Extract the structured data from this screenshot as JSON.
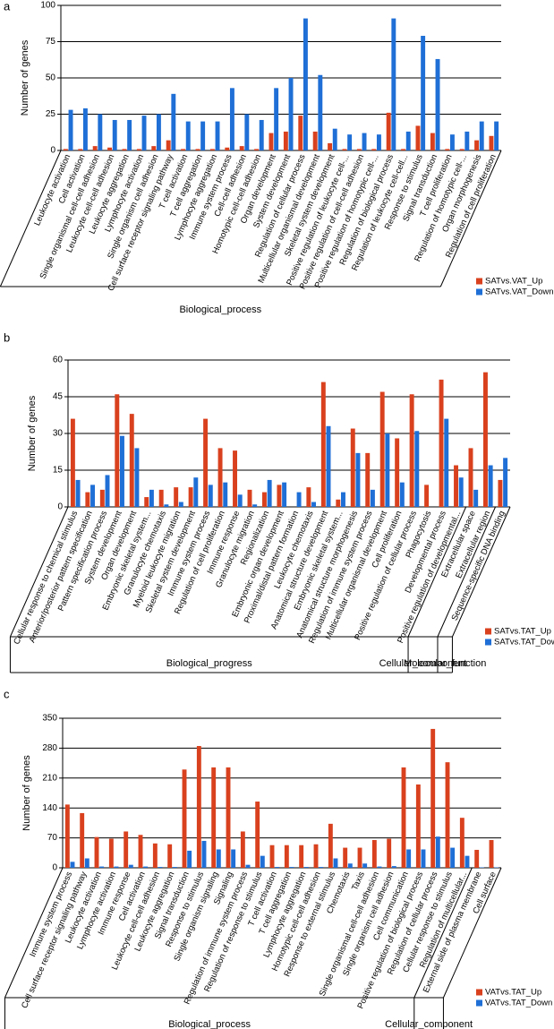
{
  "chart_data": [
    {
      "type": "bar",
      "panel": "a",
      "ylabel": "Number of genes",
      "xlabel": "Biological_process",
      "categories": [
        "Leukocyte activation",
        "Cell activation",
        "Single organismal cell-cell adhesion",
        "Leukocyte cell-cell adhesion",
        "Leukocyte aggregation",
        "Lymphocyte activation",
        "Single organism cell adhesion",
        "Cell surface receptor signaling pathway",
        "T cell activation",
        "T cell aggregation",
        "Lymphocyte aggregation",
        "Immune system process",
        "Cell-cell adhesion",
        "Homotypic cell-cell adhesion",
        "Organ development",
        "System development",
        "Regulation of cellular process",
        "Multicellular organismal development",
        "Skeletal system development",
        "Positive regulation of leukocyte cell-...",
        "Positive regulation of cell-cell adhesion",
        "Positive regulation of homotypic cell-...",
        "Regulation of biological process",
        "Regulation of leukocyte cell-cell...",
        "Response to stimulus",
        "Signal transduction",
        "T cell proliferation",
        "Regulation of homotypic cell-...",
        "Organ morphogenesis",
        "Regulation of cell proliferation"
      ],
      "series": [
        {
          "name": "SATvs.VAT_Up",
          "color": "#d9411e",
          "values": [
            1,
            1,
            3,
            2,
            1,
            1,
            3,
            7,
            1,
            1,
            1,
            2,
            3,
            1,
            12,
            13,
            24,
            13,
            5,
            1,
            1,
            1,
            26,
            1,
            17,
            12,
            1,
            1,
            7,
            10
          ]
        },
        {
          "name": "SATvs.VAT_Down",
          "color": "#1f6fd6",
          "values": [
            28,
            29,
            25,
            21,
            21,
            24,
            25,
            39,
            20,
            20,
            20,
            43,
            25,
            21,
            43,
            50,
            91,
            52,
            15,
            11,
            12,
            11,
            91,
            13,
            79,
            63,
            11,
            13,
            20,
            20
          ]
        }
      ],
      "ylim": [
        0,
        100
      ],
      "yticks": [
        0,
        25,
        50,
        75,
        100
      ],
      "grid": true,
      "legend": "bottom-right"
    },
    {
      "type": "bar",
      "panel": "b",
      "ylabel": "Number of genes",
      "categories": [
        "Cellular response to chemical stimulus",
        "Anterior/posterior pattern specification",
        "Pattern specification process",
        "System development",
        "Organ development",
        "Embryonic skeletal system...",
        "Granulocyte chemotaxis",
        "Myeloid leukocyte migration",
        "Skeletal system development",
        "Immune system process",
        "Regulation of cell proliferation",
        "Immune response",
        "Granulocyte migration",
        "Regionalization",
        "Embryonic organ development",
        "Proximal/distal pattern formation",
        "Leukocyte chemotaxis",
        "Anatomical structure development",
        "Embryonic skeletal system...",
        "Anatomical structure morphogenesis",
        "Regulation of immune system process",
        "Multicellular organismal development",
        "Cell proliferation",
        "Positive regulation of cellular process",
        "Phagocytosis",
        "Developmental process",
        "Positive regulation of developmental...",
        "Extracellular space",
        "Extracellular region",
        "Sequence-specific DNA binding"
      ],
      "series": [
        {
          "name": "SATvs.TAT_Up",
          "color": "#d9411e",
          "values": [
            36,
            6,
            7,
            46,
            38,
            4,
            7,
            8,
            8,
            36,
            24,
            23,
            7,
            6,
            9,
            0,
            8,
            51,
            3,
            32,
            22,
            47,
            28,
            46,
            9,
            52,
            17,
            24,
            55,
            11
          ]
        },
        {
          "name": "SATvs.TAT_Down",
          "color": "#1f6fd6",
          "values": [
            11,
            9,
            13,
            29,
            24,
            7,
            1,
            2,
            12,
            9,
            10,
            5,
            1,
            11,
            10,
            6,
            2,
            33,
            6,
            22,
            7,
            30,
            10,
            31,
            0,
            36,
            12,
            7,
            17,
            20
          ]
        }
      ],
      "groups": [
        {
          "label": "Biological_progress",
          "span": 27
        },
        {
          "label": "Cellular_component",
          "span": 2
        },
        {
          "label": "Molecular_function",
          "span": 1
        }
      ],
      "ylim": [
        0,
        60
      ],
      "yticks": [
        0,
        15,
        30,
        45,
        60
      ],
      "grid": true,
      "legend": "bottom-right"
    },
    {
      "type": "bar",
      "panel": "c",
      "ylabel": "Number of genes",
      "categories": [
        "Immune system process",
        "Cell surface receptor signaling pathway",
        "Leukocyte activation",
        "Lymphocyte activation",
        "Immune response",
        "Cell activation",
        "Leukocyte cell-cell adhesion",
        "Leukocyte aggregation",
        "Signal transduction",
        "Response to stimulus",
        "Single organism signaling",
        "Signaling",
        "Regulation of immune system process",
        "Regulation of response to stimulus",
        "T cell activation",
        "T cell aggregation",
        "Lymphocyte aggregation",
        "Homotypic cell-cell adhesion",
        "Response to external stimulus",
        "Chemotaxis",
        "Taxis",
        "Single organismal cell-cell adhesion",
        "Single organism cell adhesion",
        "Cell communication",
        "Positive regulation of biological process",
        "Regulation of cellular process",
        "Cellular response to stimulus",
        "Regulation of multicellular...",
        "External side of plasma membrane",
        "Cell surface"
      ],
      "series": [
        {
          "name": "VATvs.TAT_Up",
          "color": "#d9411e",
          "values": [
            148,
            128,
            72,
            68,
            85,
            77,
            57,
            55,
            230,
            285,
            235,
            235,
            85,
            155,
            53,
            53,
            53,
            55,
            103,
            47,
            47,
            65,
            68,
            235,
            195,
            325,
            247,
            117,
            42,
            65
          ]
        },
        {
          "name": "VATvs.TAT_Down",
          "color": "#1f6fd6",
          "values": [
            14,
            22,
            3,
            3,
            7,
            3,
            2,
            2,
            40,
            63,
            43,
            43,
            7,
            28,
            2,
            2,
            2,
            2,
            22,
            10,
            10,
            3,
            4,
            43,
            43,
            73,
            47,
            28,
            1,
            1
          ]
        }
      ],
      "groups": [
        {
          "label": "Biological_process",
          "span": 28
        },
        {
          "label": "Cellular_component",
          "span": 2
        }
      ],
      "ylim": [
        0,
        350
      ],
      "yticks": [
        0,
        70,
        140,
        210,
        280,
        350
      ],
      "grid": true,
      "legend": "bottom-right"
    }
  ]
}
